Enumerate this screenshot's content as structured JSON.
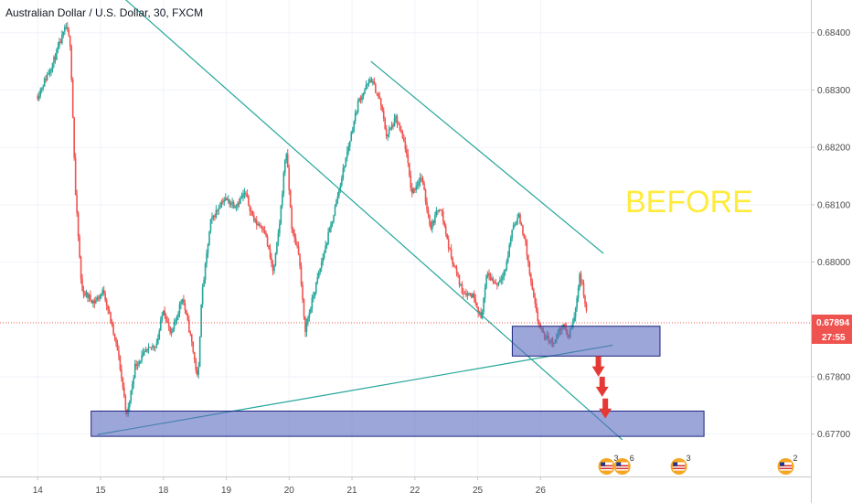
{
  "header": {
    "title": "Australian Dollar / U.S. Dollar, 30, FXCM"
  },
  "annotation": {
    "text": "BEFORE",
    "color": "#ffeb3b"
  },
  "price_tags": {
    "last_price": "0.67894",
    "countdown": "27:55",
    "color": "#ef5350"
  },
  "event_markers": [
    {
      "icon": "us-flag-icon",
      "count": "3"
    },
    {
      "icon": "us-flag-icon",
      "count": "6"
    },
    {
      "icon": "us-flag-icon",
      "count": "3"
    },
    {
      "icon": "us-flag-icon",
      "count": "2"
    }
  ],
  "colors": {
    "up": "#26a69a",
    "down": "#ef5350",
    "trendline": "#26a69a",
    "zone_fill": "#5c6bc0",
    "zone_border": "#1a237e",
    "arrow": "#e53935",
    "grid": "#f0f3fa"
  },
  "chart_data": {
    "type": "candlestick",
    "title": "Australian Dollar / U.S. Dollar, 30, FXCM",
    "xlabel": "",
    "ylabel": "",
    "x_ticks": [
      "14",
      "15",
      "18",
      "19",
      "20",
      "21",
      "22",
      "25",
      "26"
    ],
    "y_ticks": [
      "0.68400",
      "0.68300",
      "0.68200",
      "0.68100",
      "0.68000",
      "0.67800",
      "0.67700"
    ],
    "ylim": [
      0.67626,
      0.68457
    ],
    "grid": true,
    "last_price": 0.67894,
    "price_path": [
      {
        "x": 0.0,
        "p": 0.6829
      },
      {
        "x": 0.25,
        "p": 0.6835
      },
      {
        "x": 0.45,
        "p": 0.6841
      },
      {
        "x": 0.52,
        "p": 0.6838
      },
      {
        "x": 0.6,
        "p": 0.6812
      },
      {
        "x": 0.7,
        "p": 0.6795
      },
      {
        "x": 0.9,
        "p": 0.6793
      },
      {
        "x": 1.05,
        "p": 0.6795
      },
      {
        "x": 1.28,
        "p": 0.6784
      },
      {
        "x": 1.42,
        "p": 0.6773
      },
      {
        "x": 1.55,
        "p": 0.6782
      },
      {
        "x": 1.7,
        "p": 0.6784
      },
      {
        "x": 1.9,
        "p": 0.6786
      },
      {
        "x": 2.0,
        "p": 0.6792
      },
      {
        "x": 2.12,
        "p": 0.6787
      },
      {
        "x": 2.3,
        "p": 0.6794
      },
      {
        "x": 2.45,
        "p": 0.6786
      },
      {
        "x": 2.55,
        "p": 0.6779
      },
      {
        "x": 2.6,
        "p": 0.6793
      },
      {
        "x": 2.75,
        "p": 0.6807
      },
      {
        "x": 2.95,
        "p": 0.6811
      },
      {
        "x": 3.15,
        "p": 0.681
      },
      {
        "x": 3.3,
        "p": 0.6812
      },
      {
        "x": 3.45,
        "p": 0.6807
      },
      {
        "x": 3.6,
        "p": 0.6806
      },
      {
        "x": 3.75,
        "p": 0.6798
      },
      {
        "x": 3.85,
        "p": 0.6807
      },
      {
        "x": 3.95,
        "p": 0.682
      },
      {
        "x": 4.05,
        "p": 0.6805
      },
      {
        "x": 4.15,
        "p": 0.6802
      },
      {
        "x": 4.25,
        "p": 0.6788
      },
      {
        "x": 4.45,
        "p": 0.6797
      },
      {
        "x": 4.7,
        "p": 0.6808
      },
      {
        "x": 4.9,
        "p": 0.6818
      },
      {
        "x": 5.1,
        "p": 0.6828
      },
      {
        "x": 5.3,
        "p": 0.6832
      },
      {
        "x": 5.45,
        "p": 0.6828
      },
      {
        "x": 5.55,
        "p": 0.6822
      },
      {
        "x": 5.7,
        "p": 0.6825
      },
      {
        "x": 5.85,
        "p": 0.682
      },
      {
        "x": 5.95,
        "p": 0.6812
      },
      {
        "x": 6.1,
        "p": 0.6815
      },
      {
        "x": 6.25,
        "p": 0.6806
      },
      {
        "x": 6.4,
        "p": 0.681
      },
      {
        "x": 6.55,
        "p": 0.6802
      },
      {
        "x": 6.75,
        "p": 0.6795
      },
      {
        "x": 6.95,
        "p": 0.6794
      },
      {
        "x": 7.05,
        "p": 0.679
      },
      {
        "x": 7.15,
        "p": 0.6798
      },
      {
        "x": 7.3,
        "p": 0.6796
      },
      {
        "x": 7.45,
        "p": 0.6799
      },
      {
        "x": 7.55,
        "p": 0.6806
      },
      {
        "x": 7.65,
        "p": 0.6808
      },
      {
        "x": 7.75,
        "p": 0.6804
      },
      {
        "x": 7.85,
        "p": 0.6796
      },
      {
        "x": 7.95,
        "p": 0.679
      },
      {
        "x": 8.05,
        "p": 0.6787
      },
      {
        "x": 8.2,
        "p": 0.6786
      },
      {
        "x": 8.35,
        "p": 0.6789
      },
      {
        "x": 8.45,
        "p": 0.6787
      },
      {
        "x": 8.55,
        "p": 0.6791
      },
      {
        "x": 8.62,
        "p": 0.6798
      },
      {
        "x": 8.68,
        "p": 0.6795
      },
      {
        "x": 8.75,
        "p": 0.67894
      }
    ],
    "trendlines": [
      {
        "name": "",
        "x1": 0.55,
        "y1": 0.6854,
        "x2": 9.3,
        "y2": 0.6769
      },
      {
        "name": "",
        "x1": 5.3,
        "y1": 0.6835,
        "x2": 9.0,
        "y2": 0.68015
      },
      {
        "name": "",
        "x1": 0.95,
        "y1": 0.67699,
        "x2": 9.15,
        "y2": 0.67855
      }
    ],
    "zones": [
      {
        "x1": 7.55,
        "x2": 9.9,
        "y_low": 0.67836,
        "y_high": 0.67888
      },
      {
        "x1": 0.85,
        "x2": 10.6,
        "y_low": 0.67696,
        "y_high": 0.6774
      }
    ],
    "arrows": [
      {
        "x": 8.92,
        "y_from": 0.67836,
        "y_to": 0.678
      },
      {
        "x": 8.98,
        "y_from": 0.678,
        "y_to": 0.67765
      },
      {
        "x": 9.03,
        "y_from": 0.67762,
        "y_to": 0.67727
      }
    ],
    "x_range": [
      -0.6,
      12.3
    ]
  }
}
